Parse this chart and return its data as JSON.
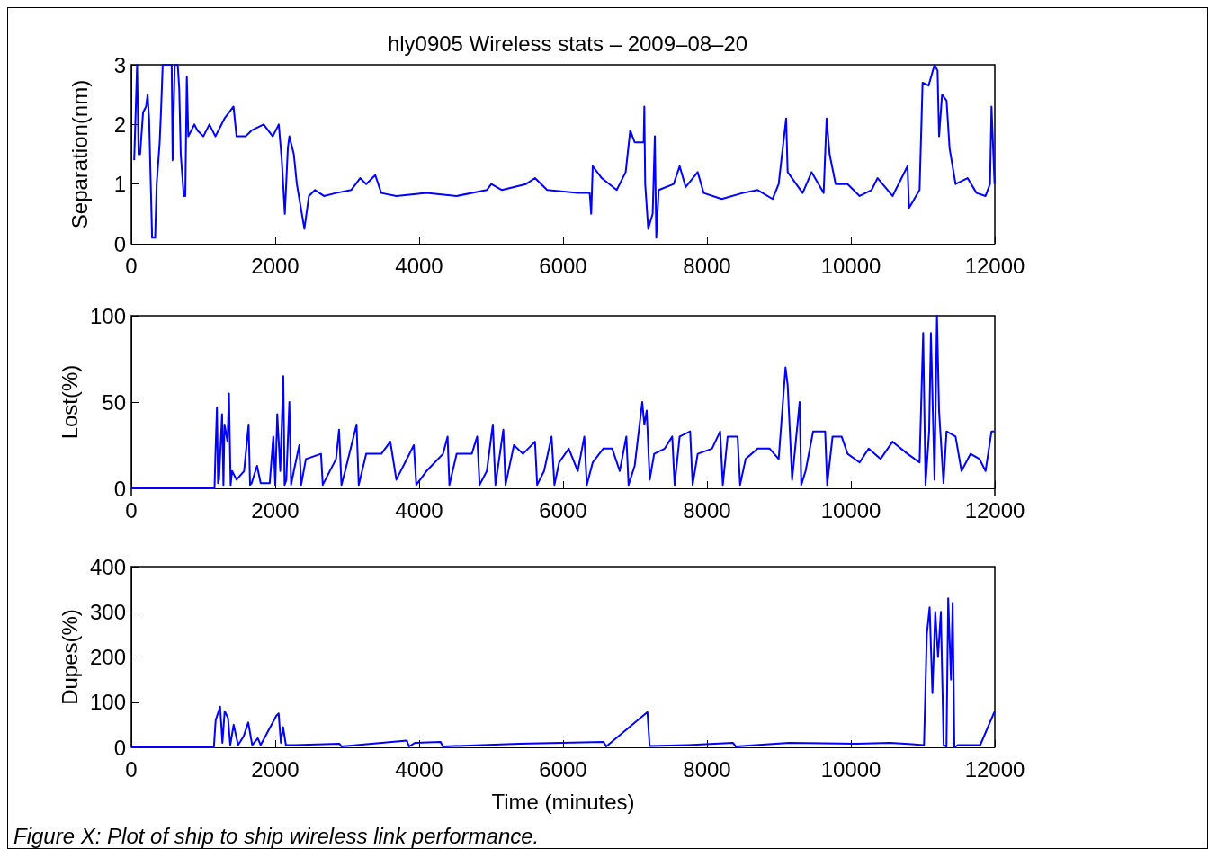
{
  "chart_data": [
    {
      "type": "line",
      "title": "hly0905 Wireless stats – 2009–08–20",
      "ylabel": "Separation(nm)",
      "color": "#0000ff",
      "grid": false,
      "xlim": [
        0,
        12000
      ],
      "ylim": [
        0,
        3
      ],
      "xticks": [
        0,
        2000,
        4000,
        6000,
        8000,
        10000,
        12000
      ],
      "yticks": [
        0,
        1,
        2,
        3
      ],
      "x": [
        40,
        80,
        101,
        122,
        163,
        205,
        226,
        247,
        268,
        289,
        331,
        352,
        394,
        415,
        436,
        561,
        574,
        603,
        645,
        666,
        687,
        729,
        750,
        771,
        792,
        876,
        918,
        1001,
        1085,
        1169,
        1295,
        1420,
        1462,
        1588,
        1672,
        1839,
        1965,
        2049,
        2091,
        2133,
        2175,
        2196,
        2258,
        2300,
        2342,
        2405,
        2468,
        2552,
        2677,
        2845,
        3055,
        3180,
        3264,
        3390,
        3474,
        3683,
        4102,
        4521,
        4940,
        5003,
        5150,
        5485,
        5610,
        5778,
        6204,
        6370,
        6391,
        6412,
        6537,
        6745,
        6870,
        6933,
        6995,
        7120,
        7129,
        7141,
        7183,
        7245,
        7275,
        7295,
        7329,
        7537,
        7620,
        7704,
        7871,
        7954,
        8204,
        8496,
        8704,
        8912,
        8996,
        9100,
        9121,
        9329,
        9454,
        9621,
        9662,
        9704,
        9787,
        9954,
        10121,
        10287,
        10371,
        10579,
        10787,
        10808,
        10954,
        10996,
        11079,
        11162,
        11204,
        11225,
        11267,
        11329,
        11371,
        11454,
        11621,
        11746,
        11871,
        11933,
        11954,
        11996
      ],
      "values": [
        1.4,
        3.0,
        1.5,
        1.5,
        2.2,
        2.3,
        2.5,
        2.1,
        1.1,
        0.1,
        0.1,
        1.0,
        1.7,
        2.3,
        3.0,
        3.0,
        1.4,
        3.0,
        3.0,
        2.6,
        1.5,
        0.8,
        0.8,
        2.8,
        1.8,
        2.0,
        1.9,
        1.8,
        2.0,
        1.8,
        2.1,
        2.3,
        1.8,
        1.8,
        1.9,
        2.0,
        1.8,
        2.0,
        1.4,
        0.5,
        1.6,
        1.8,
        1.5,
        1.0,
        0.7,
        0.25,
        0.8,
        0.9,
        0.8,
        0.85,
        0.9,
        1.1,
        1.0,
        1.15,
        0.85,
        0.8,
        0.85,
        0.8,
        0.9,
        1.0,
        0.9,
        1.0,
        1.1,
        0.9,
        0.85,
        0.85,
        0.5,
        1.3,
        1.1,
        0.9,
        1.2,
        1.9,
        1.7,
        1.7,
        2.3,
        1.0,
        0.25,
        0.5,
        1.8,
        0.1,
        0.9,
        1.0,
        1.3,
        0.95,
        1.2,
        0.85,
        0.75,
        0.85,
        0.9,
        0.75,
        1.0,
        2.1,
        1.2,
        0.85,
        1.2,
        0.85,
        2.1,
        1.5,
        1.0,
        1.0,
        0.8,
        0.9,
        1.1,
        0.8,
        1.3,
        0.6,
        0.9,
        2.7,
        2.65,
        3.0,
        2.9,
        1.8,
        2.5,
        2.4,
        1.6,
        1.0,
        1.1,
        0.85,
        0.8,
        1.0,
        2.3,
        1.0
      ]
    },
    {
      "type": "line",
      "ylabel": "Lost(%)",
      "color": "#0000ff",
      "grid": false,
      "xlim": [
        0,
        12000
      ],
      "ylim": [
        0,
        100
      ],
      "xticks": [
        0,
        2000,
        4000,
        6000,
        8000,
        10000,
        12000
      ],
      "yticks": [
        0,
        50,
        100
      ],
      "x": [
        0,
        1156,
        1169,
        1190,
        1205,
        1219,
        1261,
        1280,
        1295,
        1337,
        1357,
        1380,
        1400,
        1462,
        1567,
        1630,
        1650,
        1672,
        1747,
        1798,
        1923,
        1973,
        2000,
        2028,
        2070,
        2112,
        2130,
        2154,
        2196,
        2220,
        2258,
        2334,
        2360,
        2426,
        2636,
        2660,
        2845,
        2887,
        2920,
        2971,
        3130,
        3160,
        3264,
        3474,
        3599,
        3683,
        3926,
        3960,
        4102,
        4332,
        4395,
        4420,
        4521,
        4731,
        4806,
        4840,
        4940,
        5024,
        5060,
        5170,
        5200,
        5317,
        5443,
        5610,
        5640,
        5736,
        5840,
        5880,
        5945,
        6079,
        6204,
        6295,
        6330,
        6412,
        6558,
        6683,
        6787,
        6879,
        6910,
        6995,
        7100,
        7129,
        7162,
        7204,
        7266,
        7412,
        7517,
        7550,
        7620,
        7766,
        7800,
        7871,
        8070,
        8183,
        8220,
        8287,
        8425,
        8460,
        8537,
        8704,
        8871,
        8996,
        9091,
        9121,
        9183,
        9287,
        9310,
        9370,
        9475,
        9642,
        9670,
        9745,
        9871,
        9954,
        10121,
        10246,
        10412,
        10579,
        10787,
        10954,
        11004,
        11037,
        11087,
        11112,
        11162,
        11196,
        11225,
        11287,
        11329,
        11454,
        11537,
        11662,
        11787,
        11871,
        11954,
        11996
      ],
      "values": [
        0,
        0,
        20,
        47,
        3,
        5,
        43,
        2,
        37,
        27,
        55,
        2,
        10,
        5,
        10,
        37,
        2,
        3,
        13,
        3,
        3,
        30,
        2,
        43,
        10,
        65,
        2,
        5,
        50,
        2,
        10,
        25,
        2,
        17,
        20,
        2,
        17,
        34,
        2,
        10,
        37,
        2,
        20,
        20,
        27,
        5,
        25,
        2,
        10,
        20,
        30,
        2,
        20,
        20,
        30,
        2,
        10,
        37,
        2,
        34,
        2,
        25,
        20,
        27,
        2,
        10,
        30,
        2,
        15,
        23,
        10,
        30,
        2,
        15,
        23,
        23,
        10,
        30,
        2,
        13,
        50,
        37,
        45,
        5,
        20,
        23,
        30,
        2,
        30,
        33,
        2,
        20,
        23,
        33,
        2,
        30,
        30,
        2,
        17,
        23,
        23,
        17,
        70,
        60,
        5,
        50,
        2,
        10,
        33,
        33,
        2,
        30,
        30,
        20,
        15,
        23,
        17,
        27,
        20,
        15,
        90,
        2,
        33,
        90,
        5,
        100,
        45,
        3,
        33,
        30,
        10,
        20,
        17,
        10,
        33,
        33
      ]
    },
    {
      "type": "line",
      "ylabel": "Dupes(%)",
      "xlabel": "Time (minutes)",
      "color": "#0000ff",
      "grid": false,
      "xlim": [
        0,
        12000
      ],
      "ylim": [
        0,
        400
      ],
      "xticks": [
        0,
        2000,
        4000,
        6000,
        8000,
        10000,
        12000
      ],
      "yticks": [
        0,
        100,
        200,
        300,
        400
      ],
      "annotations": [
        "Figure X: Plot of ship to ship wireless link performance."
      ],
      "x": [
        0,
        1147,
        1172,
        1234,
        1266,
        1297,
        1344,
        1375,
        1422,
        1484,
        1562,
        1625,
        1680,
        1758,
        1797,
        2016,
        2047,
        2078,
        2109,
        2148,
        2266,
        2891,
        2920,
        3828,
        3860,
        3945,
        4297,
        4330,
        5391,
        6563,
        6600,
        7172,
        7203,
        7734,
        8359,
        8400,
        9141,
        10078,
        10547,
        11016,
        11055,
        11094,
        11133,
        11172,
        11211,
        11250,
        11289,
        11328,
        11352,
        11391,
        11414,
        11438,
        11484,
        11797,
        11998
      ],
      "values": [
        0,
        0,
        60,
        90,
        10,
        80,
        65,
        5,
        50,
        5,
        25,
        55,
        5,
        20,
        5,
        70,
        75,
        10,
        45,
        5,
        5,
        8,
        2,
        15,
        2,
        10,
        12,
        2,
        8,
        12,
        2,
        78,
        3,
        5,
        10,
        2,
        10,
        8,
        10,
        5,
        250,
        310,
        120,
        300,
        200,
        300,
        5,
        2,
        330,
        150,
        320,
        0,
        5,
        5,
        80
      ]
    }
  ]
}
